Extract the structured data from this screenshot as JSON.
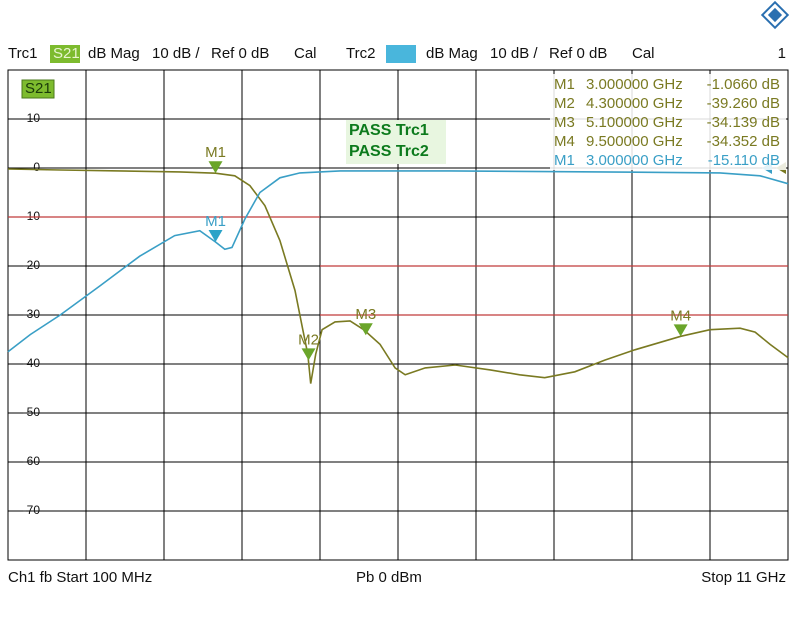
{
  "header": {
    "channel_number": "1"
  },
  "chart_data": {
    "type": "line",
    "trace_param": "S21",
    "xlim": [
      0.1,
      11
    ],
    "ylim": [
      -80,
      20
    ],
    "yticks": [
      10,
      0,
      -10,
      -20,
      -30,
      -40,
      -50,
      -60,
      -70
    ],
    "x_divisions": 10,
    "grid": true,
    "series": [
      {
        "name": "Trc1",
        "format": "dB Mag",
        "scale": "10 dB /",
        "ref": "Ref 0 dB",
        "status": "Cal",
        "color": "#7a7a22",
        "x": [
          0.1,
          0.83,
          1.66,
          2.5,
          3.0,
          3.27,
          3.48,
          3.69,
          3.9,
          4.11,
          4.22,
          4.29,
          4.33,
          4.4,
          4.49,
          4.67,
          4.88,
          5.07,
          5.3,
          5.51,
          5.65,
          5.93,
          6.35,
          6.84,
          7.25,
          7.6,
          8.02,
          8.44,
          8.86,
          9.5,
          9.91,
          10.33,
          10.54,
          10.75,
          11
        ],
        "values": [
          -0.2,
          -0.4,
          -0.6,
          -0.8,
          -1.07,
          -1.6,
          -3.6,
          -7.7,
          -14.8,
          -25,
          -33,
          -38,
          -44,
          -38,
          -33,
          -31.4,
          -31.2,
          -33,
          -36,
          -40.8,
          -42.2,
          -40.8,
          -40.2,
          -41.2,
          -42.2,
          -42.8,
          -41.6,
          -39.2,
          -37.1,
          -34.35,
          -33,
          -32.7,
          -33.5,
          -36,
          -38.7
        ]
      },
      {
        "name": "Trc2",
        "format": "dB Mag",
        "scale": "10 dB /",
        "ref": "Ref 0 dB",
        "status": "Cal",
        "color": "#3a9fc6",
        "x": [
          0.1,
          0.41,
          0.83,
          1.39,
          1.94,
          2.43,
          2.78,
          3.0,
          3.13,
          3.23,
          3.41,
          3.62,
          3.9,
          4.18,
          4.74,
          6.28,
          8.37,
          10.05,
          10.61,
          11
        ],
        "values": [
          -37.5,
          -34,
          -30,
          -24,
          -18,
          -13.8,
          -12.8,
          -15.11,
          -16.6,
          -16.2,
          -10.4,
          -5,
          -2,
          -1,
          -0.6,
          -0.6,
          -0.8,
          -1,
          -1.6,
          -3.2
        ]
      }
    ],
    "markers": [
      {
        "name": "M1",
        "series": 0,
        "x": 3.0,
        "y": -1.066,
        "x_label": "3.000000 GHz",
        "y_label": "-1.0660 dB"
      },
      {
        "name": "M2",
        "series": 0,
        "x": 4.3,
        "y": -39.26,
        "x_label": "4.300000 GHz",
        "y_label": "-39.260 dB"
      },
      {
        "name": "M3",
        "series": 0,
        "x": 5.1,
        "y": -34.139,
        "x_label": "5.100000 GHz",
        "y_label": "-34.139 dB"
      },
      {
        "name": "M4",
        "series": 0,
        "x": 9.5,
        "y": -34.352,
        "x_label": "9.500000 GHz",
        "y_label": "-34.352 dB"
      },
      {
        "name": "M1",
        "series": 1,
        "x": 3.0,
        "y": -15.11,
        "x_label": "3.000000 GHz",
        "y_label": "-15.110 dB"
      }
    ],
    "limit_color": "#c03a3a",
    "limit_lines": [
      {
        "x": [
          0.1,
          4.46
        ],
        "y": [
          -10,
          -10
        ]
      },
      {
        "x": [
          4.46,
          11
        ],
        "y": [
          -20,
          -20
        ]
      },
      {
        "x": [
          4.46,
          11
        ],
        "y": [
          -30,
          -30
        ]
      }
    ],
    "pass_labels": [
      "PASS Trc1",
      "PASS Trc2"
    ],
    "footer": {
      "left": "Ch1  fb  Start  100 MHz",
      "center": "Pb   0 dBm",
      "right": "Stop  11 GHz"
    }
  }
}
